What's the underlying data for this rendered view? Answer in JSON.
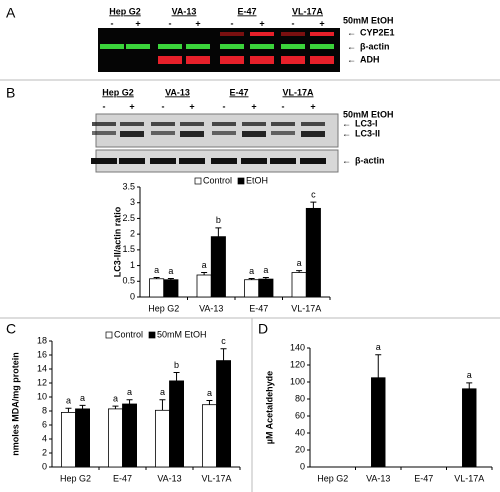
{
  "panel_labels": [
    "A",
    "B",
    "C",
    "D"
  ],
  "blot_a": {
    "cell_lines": [
      "Hep G2",
      "VA-13",
      "E-47",
      "VL-17A"
    ],
    "treatments": [
      "-",
      "+",
      "-",
      "+",
      "-",
      "+",
      "-",
      "+"
    ],
    "treatment_label": "50mM EtOH",
    "bands": [
      "CYP2E1",
      "β-actin",
      "ADH"
    ]
  },
  "blot_b": {
    "cell_lines": [
      "Hep G2",
      "VA-13",
      "E-47",
      "VL-17A"
    ],
    "treatments": [
      "-",
      "+",
      "-",
      "+",
      "-",
      "+",
      "-",
      "+"
    ],
    "treatment_label": "50mM EtOH",
    "bands": [
      "LC3-I",
      "LC3-II",
      "β-actin"
    ]
  },
  "chart_data": [
    {
      "type": "bar",
      "ylabel": "LC3-II/actin ratio",
      "categories": [
        "Hep G2",
        "VA-13",
        "E-47",
        "VL-17A"
      ],
      "series": [
        {
          "name": "Control",
          "color": "#ffffff",
          "values": [
            0.58,
            0.7,
            0.55,
            0.78
          ],
          "errors": [
            0.04,
            0.08,
            0.04,
            0.06
          ],
          "annotations": [
            "a",
            "a",
            "a",
            "a"
          ]
        },
        {
          "name": "EtOH",
          "color": "#000000",
          "values": [
            0.55,
            1.92,
            0.57,
            2.82
          ],
          "errors": [
            0.04,
            0.28,
            0.05,
            0.2
          ],
          "annotations": [
            "a",
            "b",
            "a",
            "c"
          ]
        }
      ],
      "ylim": [
        0,
        3.5
      ],
      "yticks": [
        0,
        0.5,
        1,
        1.5,
        2,
        2.5,
        3,
        3.5
      ],
      "legend": "top"
    },
    {
      "type": "bar",
      "ylabel": "nmoles MDA/mg protein",
      "categories": [
        "Hep G2",
        "E-47",
        "VA-13",
        "VL-17A"
      ],
      "series": [
        {
          "name": "Control",
          "color": "#ffffff",
          "values": [
            7.8,
            8.3,
            8.1,
            8.9
          ],
          "errors": [
            0.6,
            0.4,
            1.5,
            0.6
          ],
          "annotations": [
            "a",
            "a",
            "a",
            "a"
          ]
        },
        {
          "name": "50mM EtOH",
          "color": "#000000",
          "values": [
            8.3,
            9.0,
            12.3,
            15.2
          ],
          "errors": [
            0.5,
            0.6,
            1.2,
            1.7
          ],
          "annotations": [
            "a",
            "a",
            "b",
            "c"
          ]
        }
      ],
      "ylim": [
        0,
        18
      ],
      "yticks": [
        0,
        2,
        4,
        6,
        8,
        10,
        12,
        14,
        16,
        18
      ],
      "legend": "top"
    },
    {
      "type": "bar",
      "ylabel": "µM Acetaldehyde",
      "categories": [
        "Hep G2",
        "VA-13",
        "E-47",
        "VL-17A"
      ],
      "series": [
        {
          "color": "#000000",
          "values": [
            0,
            105,
            0,
            92
          ],
          "errors": [
            null,
            27,
            null,
            7
          ],
          "annotations": [
            null,
            "a",
            null,
            "a"
          ]
        }
      ],
      "ylim": [
        0,
        140
      ],
      "yticks": [
        0,
        20,
        40,
        60,
        80,
        100,
        120,
        140
      ]
    }
  ]
}
